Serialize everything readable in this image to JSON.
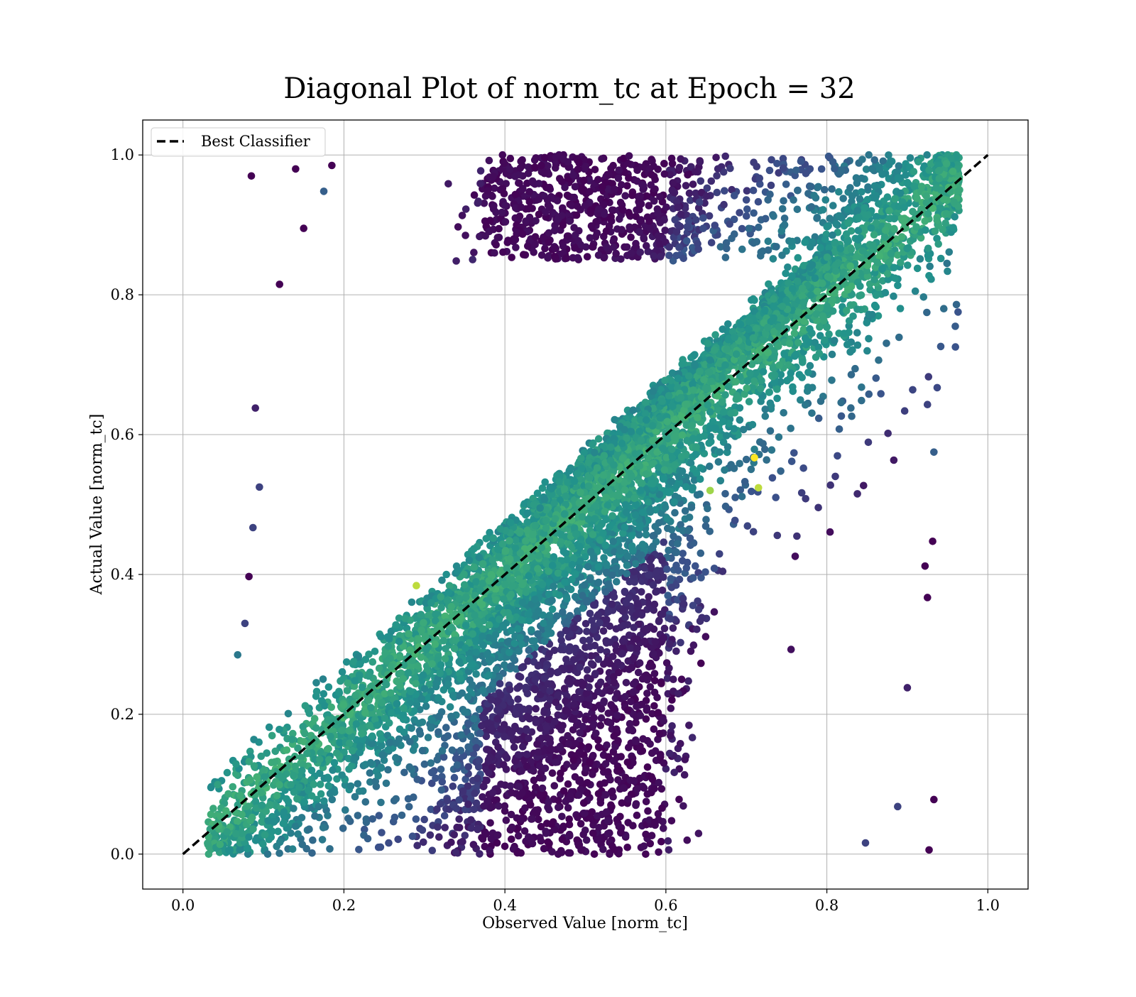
{
  "chart_data": {
    "type": "scatter",
    "title": "Diagonal Plot of norm_tc at Epoch = 32",
    "xlabel": "Observed Value [norm_tc]",
    "ylabel": "Actual Value [norm_tc]",
    "xlim": [
      -0.05,
      1.05
    ],
    "ylim": [
      -0.05,
      1.05
    ],
    "x_ticks": [
      0.0,
      0.2,
      0.4,
      0.6,
      0.8,
      1.0
    ],
    "y_ticks": [
      0.0,
      0.2,
      0.4,
      0.6,
      0.8,
      1.0
    ],
    "x_tick_labels": [
      "0.0",
      "0.2",
      "0.4",
      "0.6",
      "0.8",
      "1.0"
    ],
    "y_tick_labels": [
      "0.0",
      "0.2",
      "0.4",
      "0.6",
      "0.8",
      "1.0"
    ],
    "grid": true,
    "legend_position": "top-left",
    "colormap": "viridis",
    "point_color_range": [
      "#440154",
      "#3b528b",
      "#21918c",
      "#5ec962"
    ],
    "series": [
      {
        "name": "Best Classifier",
        "type": "line",
        "style": "dashed",
        "color": "#000000",
        "x": [
          0.0,
          1.0
        ],
        "y": [
          0.0,
          1.0
        ]
      }
    ],
    "scatter_density": {
      "description_points": [
        {
          "x": 0.085,
          "y": 0.97,
          "c": 0.0
        },
        {
          "x": 0.14,
          "y": 0.98,
          "c": 0.0
        },
        {
          "x": 0.185,
          "y": 0.985,
          "c": 0.0
        },
        {
          "x": 0.175,
          "y": 0.948,
          "c": 0.3
        },
        {
          "x": 0.15,
          "y": 0.895,
          "c": 0.0
        },
        {
          "x": 0.12,
          "y": 0.815,
          "c": 0.0
        },
        {
          "x": 0.09,
          "y": 0.638,
          "c": 0.1
        },
        {
          "x": 0.095,
          "y": 0.525,
          "c": 0.2
        },
        {
          "x": 0.087,
          "y": 0.467,
          "c": 0.2
        },
        {
          "x": 0.082,
          "y": 0.397,
          "c": 0.0
        },
        {
          "x": 0.077,
          "y": 0.33,
          "c": 0.2
        },
        {
          "x": 0.068,
          "y": 0.285,
          "c": 0.4
        },
        {
          "x": 0.925,
          "y": 0.643,
          "c": 0.2
        },
        {
          "x": 0.933,
          "y": 0.575,
          "c": 0.3
        },
        {
          "x": 0.922,
          "y": 0.412,
          "c": 0.0
        },
        {
          "x": 0.925,
          "y": 0.367,
          "c": 0.0
        },
        {
          "x": 0.9,
          "y": 0.238,
          "c": 0.1
        },
        {
          "x": 0.888,
          "y": 0.068,
          "c": 0.2
        },
        {
          "x": 0.933,
          "y": 0.078,
          "c": 0.0
        },
        {
          "x": 0.927,
          "y": 0.006,
          "c": 0.0
        },
        {
          "x": 0.848,
          "y": 0.016,
          "c": 0.2
        },
        {
          "x": 0.29,
          "y": 0.384,
          "c": 0.9
        },
        {
          "x": 0.715,
          "y": 0.524,
          "c": 0.9
        },
        {
          "x": 0.71,
          "y": 0.567,
          "c": 1.0
        },
        {
          "x": 0.655,
          "y": 0.52,
          "c": 0.85
        }
      ]
    }
  }
}
